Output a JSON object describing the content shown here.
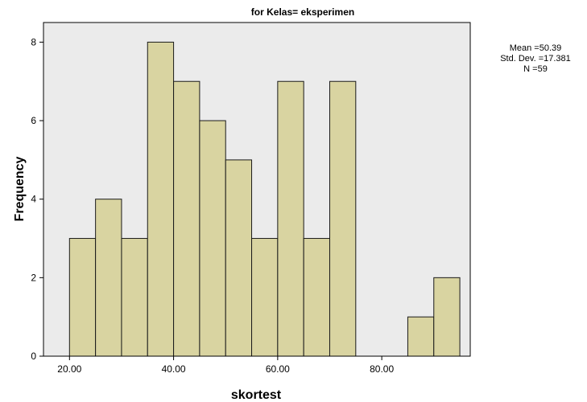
{
  "chart_data": {
    "type": "bar",
    "subtype": "histogram",
    "title": "for Kelas= eksperimen",
    "xlabel": "skortest",
    "ylabel": "Frequency",
    "xlim": [
      15.0,
      97.0
    ],
    "ylim": [
      0,
      8.5
    ],
    "x_ticks": [
      20,
      40,
      60,
      80
    ],
    "x_tick_labels": [
      "20.00",
      "40.00",
      "60.00",
      "80.00"
    ],
    "y_ticks": [
      0,
      2,
      4,
      6,
      8
    ],
    "y_tick_labels": [
      "0",
      "2",
      "4",
      "6",
      "8"
    ],
    "bin_width": 5,
    "bins": [
      {
        "start": 20,
        "end": 25,
        "count": 3
      },
      {
        "start": 25,
        "end": 30,
        "count": 4
      },
      {
        "start": 30,
        "end": 35,
        "count": 3
      },
      {
        "start": 35,
        "end": 40,
        "count": 8
      },
      {
        "start": 40,
        "end": 45,
        "count": 7
      },
      {
        "start": 45,
        "end": 50,
        "count": 6
      },
      {
        "start": 50,
        "end": 55,
        "count": 5
      },
      {
        "start": 55,
        "end": 60,
        "count": 3
      },
      {
        "start": 60,
        "end": 65,
        "count": 7
      },
      {
        "start": 65,
        "end": 70,
        "count": 3
      },
      {
        "start": 70,
        "end": 75,
        "count": 7
      },
      {
        "start": 75,
        "end": 80,
        "count": 0
      },
      {
        "start": 80,
        "end": 85,
        "count": 0
      },
      {
        "start": 85,
        "end": 90,
        "count": 1
      },
      {
        "start": 90,
        "end": 95,
        "count": 2
      }
    ],
    "grid": false,
    "colors": {
      "plot_background": "#ebebeb",
      "bar_fill": "#d9d4a1",
      "bar_stroke": "#1a1a1a",
      "axis": "#000000"
    }
  },
  "stats": {
    "mean": "Mean =50.39",
    "std": "Std. Dev. =17.381",
    "n": "N =59"
  }
}
